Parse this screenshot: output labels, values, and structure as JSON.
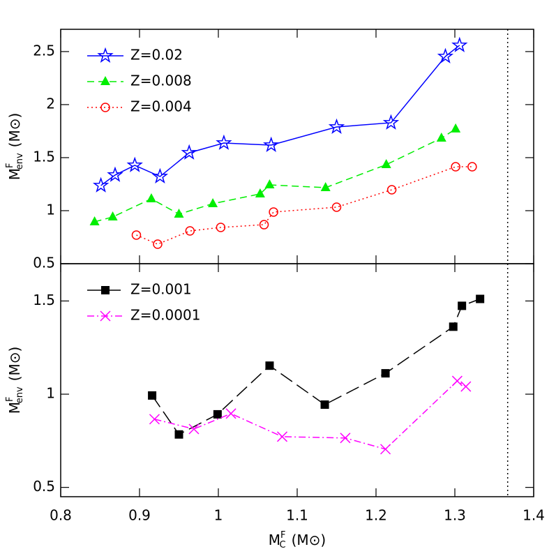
{
  "chart_data": [
    {
      "type": "line",
      "xlim": [
        0.8,
        1.4
      ],
      "xticks": [
        0.8,
        0.9,
        1,
        1.1,
        1.2,
        1.3,
        1.4
      ],
      "ylim": [
        0.5,
        2.71
      ],
      "yticks": [
        0.5,
        1,
        1.5,
        2,
        2.5
      ],
      "ylabel": {
        "base": "M",
        "sup": "F",
        "sub": "env",
        "unit": "(M⊙)"
      },
      "vline": 1.367,
      "legend": "upper left",
      "series": [
        {
          "name": "Z=0.02",
          "color": "#0000ff",
          "marker": "star",
          "line": "solid",
          "x": [
            0.851,
            0.869,
            0.894,
            0.926,
            0.963,
            1.007,
            1.067,
            1.15,
            1.219,
            1.288,
            1.306
          ],
          "values": [
            1.237,
            1.336,
            1.428,
            1.322,
            1.546,
            1.638,
            1.618,
            1.789,
            1.829,
            2.454,
            2.559
          ]
        },
        {
          "name": "Z=0.008",
          "color": "#00ee00",
          "marker": "triangle",
          "line": "dashed",
          "x": [
            0.843,
            0.866,
            0.915,
            0.95,
            0.993,
            1.053,
            1.065,
            1.136,
            1.213,
            1.283,
            1.301
          ],
          "values": [
            0.895,
            0.941,
            1.112,
            0.967,
            1.066,
            1.158,
            1.243,
            1.217,
            1.434,
            1.684,
            1.77
          ]
        },
        {
          "name": "Z=0.004",
          "color": "#ff0000",
          "marker": "circle",
          "line": "dotted",
          "x": [
            0.896,
            0.923,
            0.964,
            1.003,
            1.058,
            1.07,
            1.15,
            1.22,
            1.301,
            1.322
          ],
          "values": [
            0.77,
            0.684,
            0.809,
            0.842,
            0.868,
            0.987,
            1.033,
            1.197,
            1.414,
            1.414
          ]
        }
      ]
    },
    {
      "type": "line",
      "xlim": [
        0.8,
        1.4
      ],
      "xticks": [
        0.8,
        0.9,
        1,
        1.1,
        1.2,
        1.3,
        1.4
      ],
      "ylim": [
        0.45,
        1.7
      ],
      "yticks": [
        0.5,
        1,
        1.5
      ],
      "ylabel": {
        "base": "M",
        "sup": "F",
        "sub": "env",
        "unit": "(M⊙)"
      },
      "xlabel": {
        "base": "M",
        "sup": "F",
        "sub": "C",
        "unit": "(M⊙)"
      },
      "vline": 1.367,
      "legend": "upper left",
      "series": [
        {
          "name": "Z=0.001",
          "color": "#000000",
          "marker": "square",
          "line": "longdash",
          "x": [
            0.916,
            0.95,
            0.999,
            1.065,
            1.135,
            1.212,
            1.298,
            1.309,
            1.332
          ],
          "values": [
            0.993,
            0.784,
            0.892,
            1.153,
            0.944,
            1.112,
            1.362,
            1.474,
            1.511
          ]
        },
        {
          "name": "Z=0.0001",
          "color": "#ff00ff",
          "marker": "cross",
          "line": "dashdot",
          "x": [
            0.919,
            0.969,
            1.016,
            1.081,
            1.161,
            1.212,
            1.303,
            1.314
          ],
          "values": [
            0.866,
            0.813,
            0.896,
            0.772,
            0.765,
            0.705,
            1.071,
            1.041
          ]
        }
      ]
    }
  ]
}
